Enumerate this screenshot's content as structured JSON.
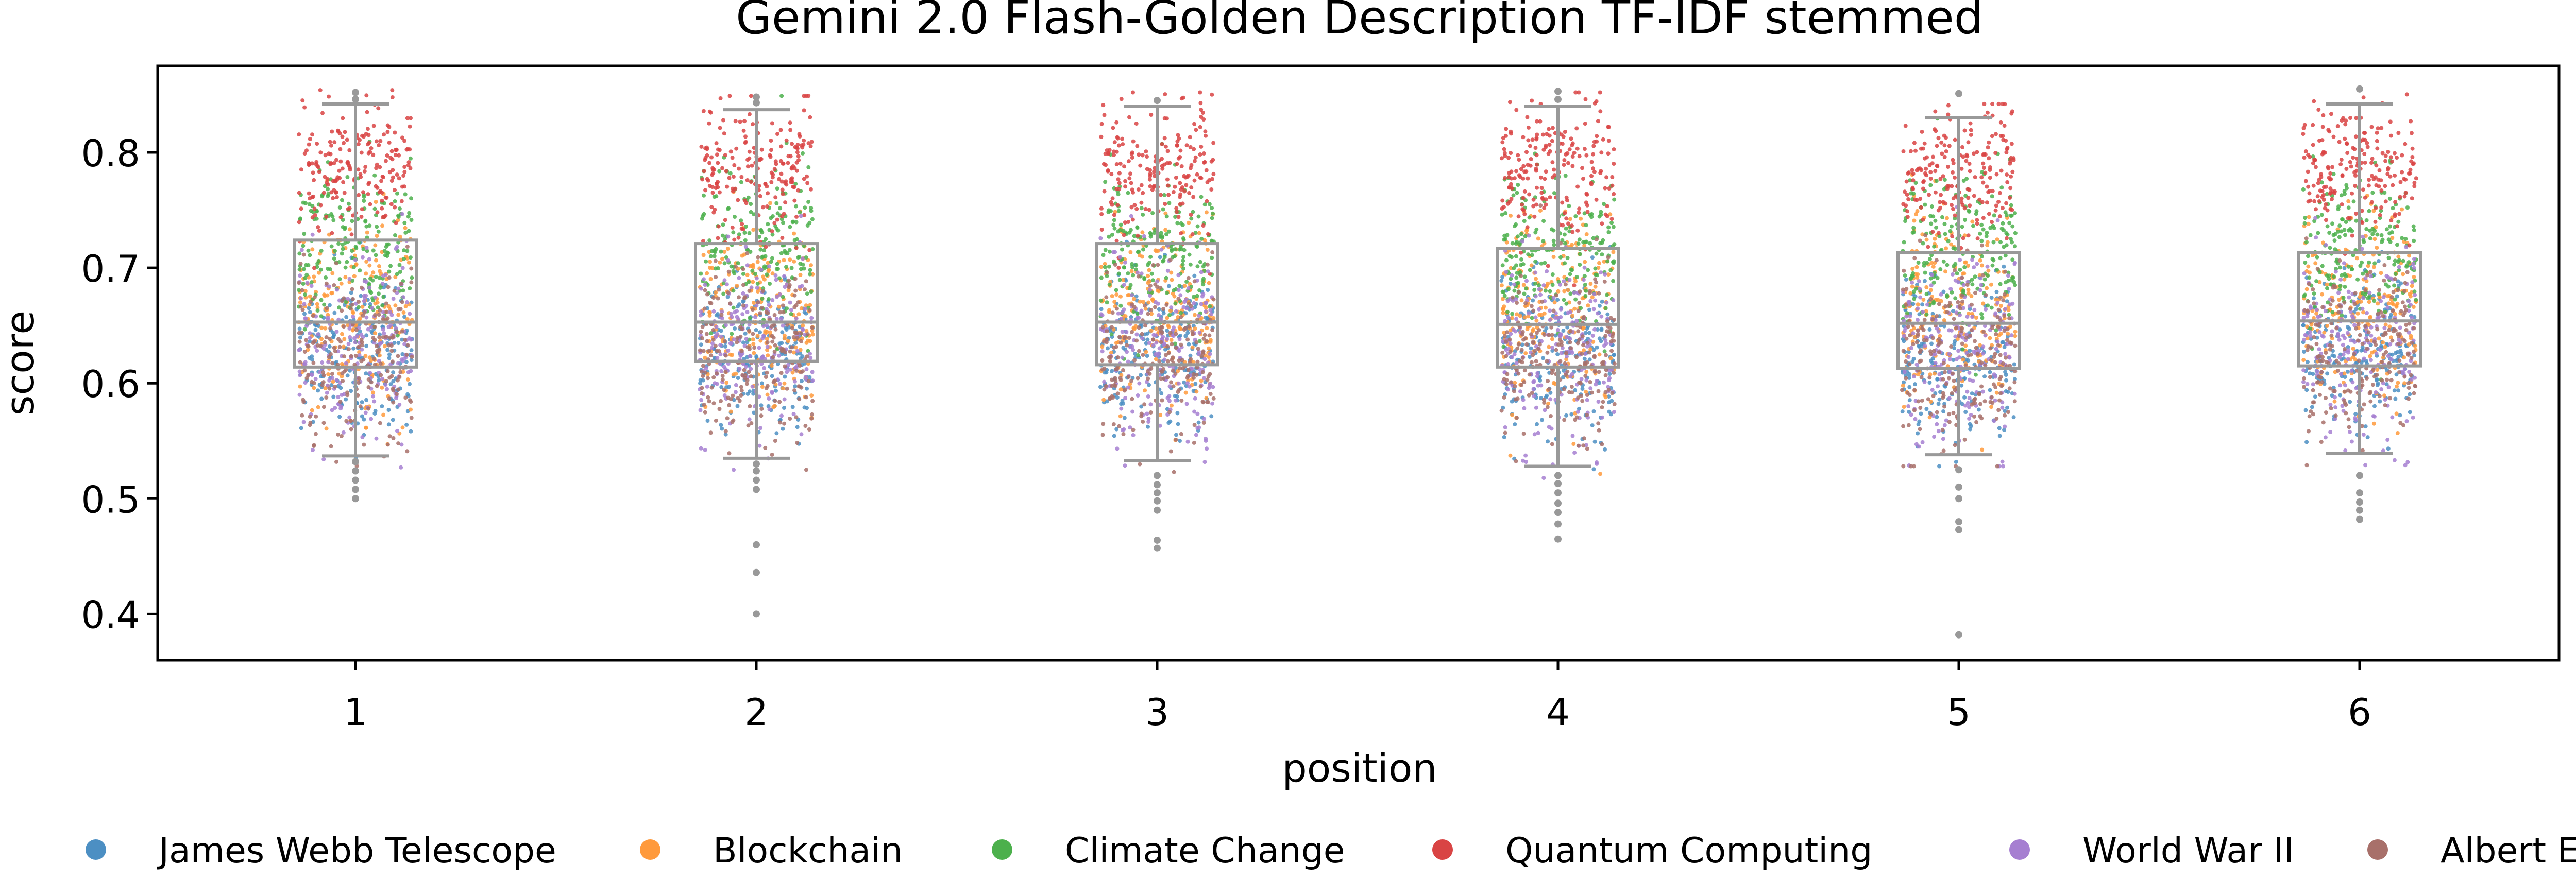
{
  "chart_data": {
    "type": "scatter",
    "subtype": "box-and-strip",
    "title": "Gemini 2.0 Flash-Golden Description TF-IDF stemmed",
    "xlabel": "position",
    "ylabel": "score",
    "categories": [
      "1",
      "2",
      "3",
      "4",
      "5",
      "6"
    ],
    "ylim": [
      0.36,
      0.875
    ],
    "yticks": [
      0.4,
      0.5,
      0.6,
      0.7,
      0.8
    ],
    "ytick_labels": [
      "0.4",
      "0.5",
      "0.6",
      "0.7",
      "0.8"
    ],
    "grid": false,
    "legend_position": "bottom",
    "box_color": "#999999",
    "boxes": [
      {
        "position": "1",
        "whislo": 0.537,
        "q1": 0.614,
        "med": 0.653,
        "q3": 0.724,
        "whishi": 0.842,
        "fliers": [
          0.5,
          0.508,
          0.516,
          0.524,
          0.532,
          0.846,
          0.852
        ]
      },
      {
        "position": "2",
        "whislo": 0.535,
        "q1": 0.619,
        "med": 0.653,
        "q3": 0.721,
        "whishi": 0.837,
        "fliers": [
          0.4,
          0.436,
          0.46,
          0.508,
          0.516,
          0.524,
          0.53,
          0.843,
          0.848
        ]
      },
      {
        "position": "3",
        "whislo": 0.533,
        "q1": 0.616,
        "med": 0.653,
        "q3": 0.721,
        "whishi": 0.84,
        "fliers": [
          0.457,
          0.464,
          0.49,
          0.498,
          0.505,
          0.512,
          0.52,
          0.845
        ]
      },
      {
        "position": "4",
        "whislo": 0.528,
        "q1": 0.614,
        "med": 0.651,
        "q3": 0.717,
        "whishi": 0.84,
        "fliers": [
          0.465,
          0.478,
          0.488,
          0.496,
          0.505,
          0.513,
          0.52,
          0.846,
          0.853
        ]
      },
      {
        "position": "5",
        "whislo": 0.538,
        "q1": 0.613,
        "med": 0.652,
        "q3": 0.713,
        "whishi": 0.83,
        "fliers": [
          0.382,
          0.473,
          0.48,
          0.5,
          0.51,
          0.525,
          0.851
        ]
      },
      {
        "position": "6",
        "whislo": 0.539,
        "q1": 0.615,
        "med": 0.654,
        "q3": 0.713,
        "whishi": 0.842,
        "fliers": [
          0.482,
          0.49,
          0.497,
          0.505,
          0.52,
          0.855
        ]
      }
    ],
    "series": [
      {
        "name": "James Webb Telescope",
        "color": "#4c8fc3",
        "mean": 0.625,
        "sd": 0.035,
        "points_per_position": 200
      },
      {
        "name": "Blockchain",
        "color": "#ff9a3c",
        "mean": 0.665,
        "sd": 0.042,
        "points_per_position": 200
      },
      {
        "name": "Climate Change",
        "color": "#4cb04c",
        "mean": 0.715,
        "sd": 0.035,
        "points_per_position": 200
      },
      {
        "name": "Quantum Computing",
        "color": "#d94444",
        "mean": 0.785,
        "sd": 0.03,
        "points_per_position": 200
      },
      {
        "name": "World War II",
        "color": "#a67fd1",
        "mean": 0.63,
        "sd": 0.04,
        "points_per_position": 200
      },
      {
        "name": "Albert Einstein",
        "color": "#a8706a",
        "mean": 0.625,
        "sd": 0.038,
        "points_per_position": 200
      }
    ]
  }
}
